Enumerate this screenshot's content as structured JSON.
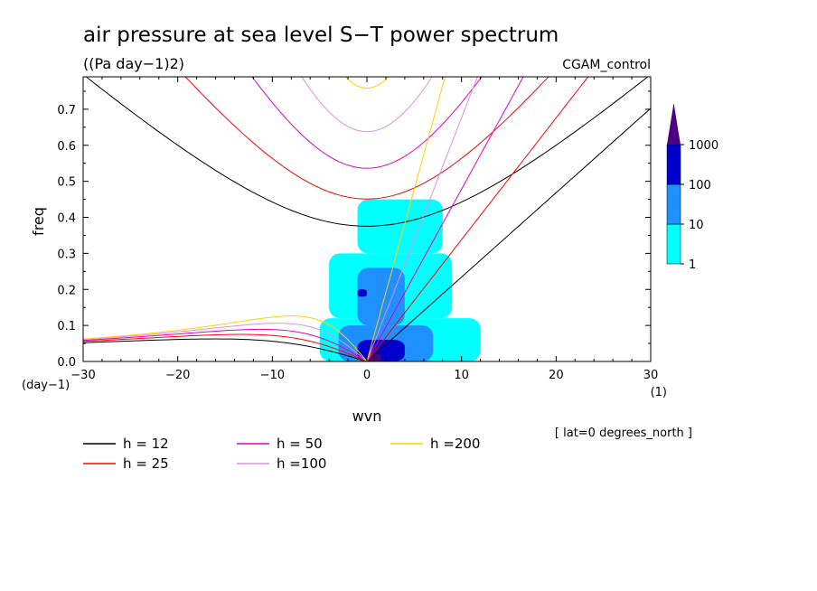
{
  "chart_data": {
    "type": "heatmap",
    "title": "air pressure at sea level S−T power spectrum",
    "subtitle": "((Pa day−1)2)",
    "run_label": "CGAM_control",
    "xlabel": "wvn",
    "ylabel": "freq",
    "x_unit": "(1)",
    "y_unit": "(day−1)",
    "xlim": [
      -30,
      30
    ],
    "ylim": [
      0,
      0.79
    ],
    "x_ticks": [
      -30,
      -20,
      -10,
      0,
      10,
      20,
      30
    ],
    "x_tick_labels": [
      "−30",
      "−20",
      "−10",
      "0",
      "10",
      "20",
      "30"
    ],
    "y_ticks": [
      0,
      0.1,
      0.2,
      0.3,
      0.4,
      0.5,
      0.6,
      0.7
    ],
    "y_tick_labels": [
      "0.0",
      "0.1",
      "0.2",
      "0.3",
      "0.4",
      "0.5",
      "0.6",
      "0.7"
    ],
    "annotation": "[ lat=0 degrees_north ]",
    "colorbar": {
      "levels": [
        1,
        10,
        100,
        1000
      ],
      "labels": [
        "1",
        "10",
        "100",
        "1000"
      ],
      "colors": [
        "#00ffff",
        "#1e90ff",
        "#0000cd",
        "#4b0082"
      ]
    },
    "dispersion_curves": [
      {
        "label": "h = 12",
        "h": 12,
        "color": "#000000"
      },
      {
        "label": "h = 25",
        "h": 25,
        "color": "#ff0000"
      },
      {
        "label": "h = 50",
        "h": 50,
        "color": "#e000c8"
      },
      {
        "label": "h =100",
        "h": 100,
        "color": "#dd90dd"
      },
      {
        "label": "h =200",
        "h": 200,
        "color": "#ffd000"
      }
    ],
    "power_regions": [
      {
        "level": 1,
        "x": [
          -5,
          12
        ],
        "y": [
          0.0,
          0.12
        ]
      },
      {
        "level": 1,
        "x": [
          -4,
          9
        ],
        "y": [
          0.12,
          0.3
        ]
      },
      {
        "level": 1,
        "x": [
          -1,
          8
        ],
        "y": [
          0.3,
          0.45
        ]
      },
      {
        "level": 10,
        "x": [
          -3,
          7
        ],
        "y": [
          0.0,
          0.1
        ]
      },
      {
        "level": 10,
        "x": [
          -1,
          4
        ],
        "y": [
          0.1,
          0.26
        ]
      },
      {
        "level": 100,
        "x": [
          -1,
          4
        ],
        "y": [
          0.0,
          0.06
        ]
      },
      {
        "level": 100,
        "x": [
          -1,
          0
        ],
        "y": [
          0.18,
          0.2
        ]
      },
      {
        "level": 1000,
        "x": [
          0,
          1.5
        ],
        "y": [
          0.0,
          0.02
        ]
      }
    ]
  }
}
